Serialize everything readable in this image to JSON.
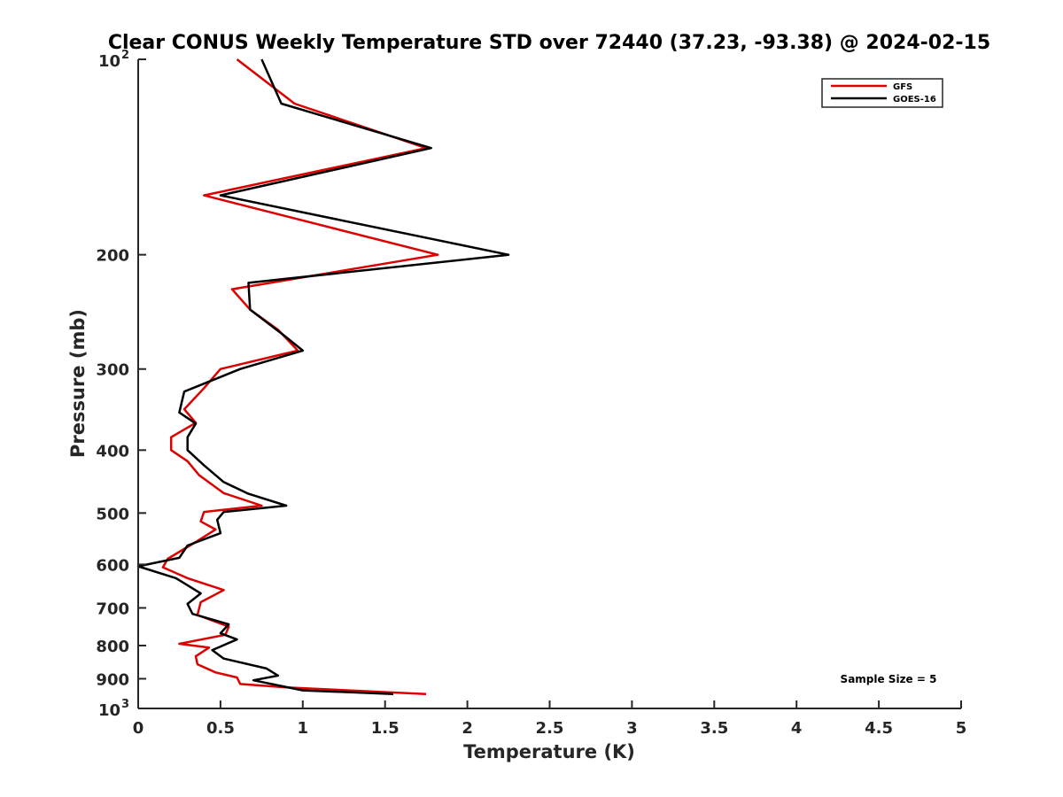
{
  "chart_data": {
    "type": "line",
    "title": "Clear CONUS Weekly Temperature STD over 72440 (37.23, -93.38) @ 2024-02-15",
    "xlabel": "Temperature (K)",
    "ylabel": "Pressure (mb)",
    "xlim": [
      0,
      5
    ],
    "ylim": [
      100,
      1000
    ],
    "y_scale": "log",
    "y_reversed": true,
    "grid": false,
    "legend_position": "top-right",
    "x_ticks": [
      "0",
      "0.5",
      "1",
      "1.5",
      "2",
      "2.5",
      "3",
      "3.5",
      "4",
      "4.5",
      "5"
    ],
    "y_ticks": [
      {
        "value": 100,
        "label": "10",
        "exp": "2"
      },
      {
        "value": 200,
        "label": "200"
      },
      {
        "value": 300,
        "label": "300"
      },
      {
        "value": 400,
        "label": "400"
      },
      {
        "value": 500,
        "label": "500"
      },
      {
        "value": 600,
        "label": "600"
      },
      {
        "value": 700,
        "label": "700"
      },
      {
        "value": 800,
        "label": "800"
      },
      {
        "value": 900,
        "label": "900"
      },
      {
        "value": 1000,
        "label": "10",
        "exp": "3"
      }
    ],
    "series": [
      {
        "name": "GFS",
        "color": "#dd0000",
        "points": [
          [
            0.6,
            100
          ],
          [
            0.95,
            117
          ],
          [
            1.75,
            137
          ],
          [
            0.4,
            162
          ],
          [
            1.82,
            200
          ],
          [
            0.57,
            226
          ],
          [
            0.68,
            243
          ],
          [
            0.85,
            261
          ],
          [
            0.97,
            281
          ],
          [
            0.5,
            300
          ],
          [
            0.4,
            321
          ],
          [
            0.28,
            346
          ],
          [
            0.35,
            363
          ],
          [
            0.2,
            382
          ],
          [
            0.2,
            400
          ],
          [
            0.3,
            416
          ],
          [
            0.37,
            437
          ],
          [
            0.52,
            466
          ],
          [
            0.75,
            487
          ],
          [
            0.4,
            498
          ],
          [
            0.38,
            515
          ],
          [
            0.47,
            530
          ],
          [
            0.35,
            554
          ],
          [
            0.18,
            588
          ],
          [
            0.15,
            606
          ],
          [
            0.3,
            630
          ],
          [
            0.52,
            657
          ],
          [
            0.38,
            686
          ],
          [
            0.36,
            718
          ],
          [
            0.55,
            748
          ],
          [
            0.53,
            770
          ],
          [
            0.25,
            795
          ],
          [
            0.43,
            806
          ],
          [
            0.35,
            831
          ],
          [
            0.36,
            855
          ],
          [
            0.47,
            880
          ],
          [
            0.6,
            896
          ],
          [
            0.62,
            917
          ],
          [
            0.9,
            928
          ],
          [
            1.75,
            950
          ]
        ]
      },
      {
        "name": "GOES-16",
        "color": "#000000",
        "points": [
          [
            0.75,
            100
          ],
          [
            0.87,
            117
          ],
          [
            1.78,
            137
          ],
          [
            0.5,
            162
          ],
          [
            2.25,
            200
          ],
          [
            0.67,
            221
          ],
          [
            0.68,
            243
          ],
          [
            0.9,
            268
          ],
          [
            1.0,
            281
          ],
          [
            0.62,
            300
          ],
          [
            0.28,
            325
          ],
          [
            0.25,
            350
          ],
          [
            0.35,
            364
          ],
          [
            0.3,
            382
          ],
          [
            0.3,
            400
          ],
          [
            0.4,
            422
          ],
          [
            0.52,
            448
          ],
          [
            0.67,
            467
          ],
          [
            0.9,
            487
          ],
          [
            0.52,
            498
          ],
          [
            0.48,
            512
          ],
          [
            0.5,
            537
          ],
          [
            0.3,
            561
          ],
          [
            0.25,
            586
          ],
          [
            0.0,
            604
          ],
          [
            0.23,
            630
          ],
          [
            0.38,
            665
          ],
          [
            0.3,
            690
          ],
          [
            0.33,
            715
          ],
          [
            0.55,
            742
          ],
          [
            0.5,
            766
          ],
          [
            0.6,
            783
          ],
          [
            0.45,
            813
          ],
          [
            0.52,
            838
          ],
          [
            0.78,
            868
          ],
          [
            0.85,
            890
          ],
          [
            0.7,
            905
          ],
          [
            1.0,
            938
          ],
          [
            1.55,
            950
          ]
        ]
      }
    ],
    "annotation": "Sample Size = 5"
  }
}
